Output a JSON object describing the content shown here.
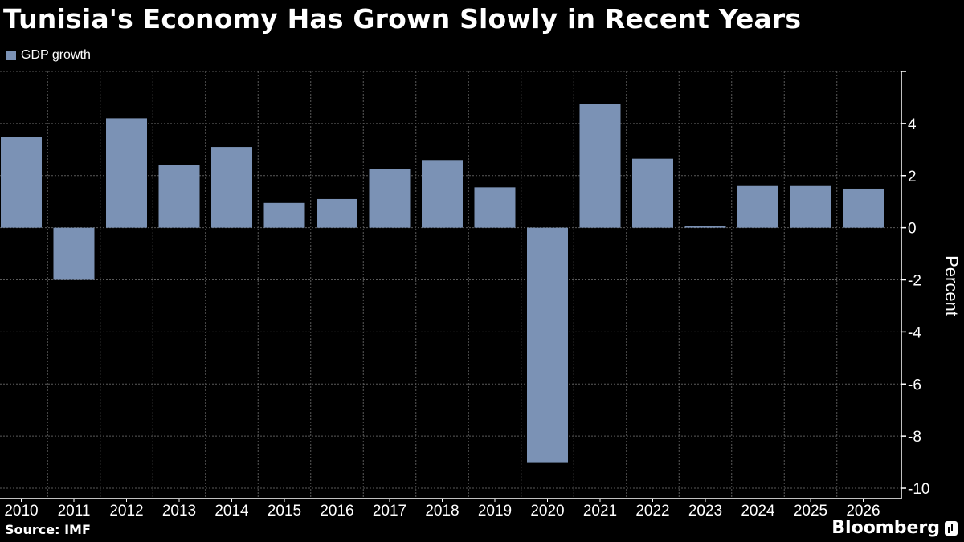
{
  "header": {
    "title": "Tunisia's Economy Has Grown Slowly in Recent Years"
  },
  "footer": {
    "source": "Source: IMF",
    "brand": "Bloomberg"
  },
  "colors": {
    "background": "#000000",
    "bar": "#7b92b5",
    "grid": "#5a5a5a",
    "text": "#ffffff"
  },
  "chart_data": {
    "type": "bar",
    "categories": [
      "2010",
      "2011",
      "2012",
      "2013",
      "2014",
      "2015",
      "2016",
      "2017",
      "2018",
      "2019",
      "2020",
      "2021",
      "2022",
      "2023",
      "2024",
      "2025",
      "2026"
    ],
    "series": [
      {
        "name": "GDP growth",
        "values": [
          3.5,
          -2.0,
          4.2,
          2.4,
          3.1,
          0.95,
          1.1,
          2.25,
          2.6,
          1.55,
          -9.0,
          4.75,
          2.65,
          0.05,
          1.6,
          1.6,
          1.5
        ]
      }
    ],
    "ylabel": "Percent",
    "ylim": [
      -10.4,
      6
    ],
    "yticks": [
      4,
      2,
      0,
      -2,
      -4,
      -6,
      -8,
      -10
    ],
    "ytick_labels": [
      "4",
      "2",
      "0",
      "-2",
      "-4",
      "-6",
      "-8",
      "-10"
    ],
    "y_axis_position": "right",
    "legend_position": "top-left",
    "grid": true
  }
}
